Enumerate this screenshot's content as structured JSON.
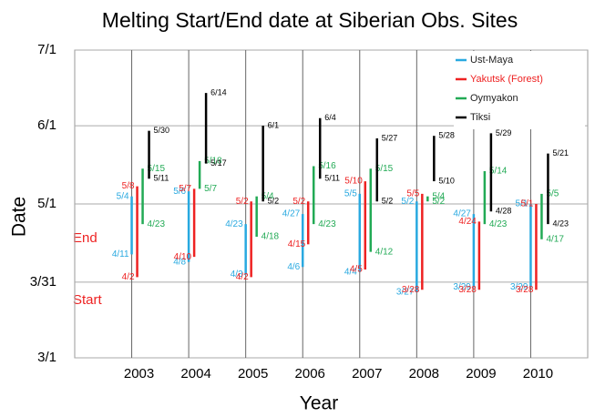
{
  "chart_data": {
    "type": "range_bar",
    "title": "Melting Start/End date at Siberian Obs. Sites",
    "x_label": "Year",
    "y_label": "Date",
    "annotations": [
      "End",
      "Start"
    ],
    "categories": [
      "2003",
      "2004",
      "2005",
      "2006",
      "2007",
      "2008",
      "2009",
      "2010"
    ],
    "ylim": [
      60,
      182
    ],
    "yticks": [
      {
        "value": 60,
        "label": "3/1"
      },
      {
        "value": 90,
        "label": "3/31"
      },
      {
        "value": 121,
        "label": "5/1"
      },
      {
        "value": 152,
        "label": "6/1"
      },
      {
        "value": 182,
        "label": "7/1"
      }
    ],
    "grid": true,
    "legend": "upper right",
    "series": [
      {
        "name": "Ust-Maya",
        "color": "#29a9e0",
        "start": [
          101,
          98,
          93,
          96,
          94,
          86,
          88,
          88
        ],
        "start_labels": [
          "4/11",
          "4/8",
          "4/3",
          "4/6",
          "4/4",
          "3/27",
          "3/29",
          "3/29"
        ],
        "end": [
          124,
          126,
          113,
          117,
          125,
          122,
          117,
          121
        ],
        "end_labels": [
          "5/4",
          "5/6",
          "4/23",
          "4/27",
          "5/5",
          "5/2",
          "4/27",
          "5/1"
        ]
      },
      {
        "name": "Yakutsk (Forest)",
        "color": "#ee2222",
        "start": [
          92,
          100,
          92,
          105,
          95,
          87,
          87,
          87
        ],
        "start_labels": [
          "4/2",
          "4/10",
          "4/2",
          "4/15",
          "4/5",
          "3/28",
          "3/28",
          "3/28"
        ],
        "end": [
          128,
          127,
          122,
          122,
          130,
          125,
          114,
          121
        ],
        "end_labels": [
          "5/8",
          "5/7",
          "5/2",
          "5/2",
          "5/10",
          "5/5",
          "4/24",
          "5/1"
        ]
      },
      {
        "name": "Oymyakon",
        "color": "#22aa55",
        "start": [
          113,
          127,
          108,
          113,
          102,
          122,
          113,
          107
        ],
        "start_labels": [
          "4/23",
          "5/7",
          "4/18",
          "4/23",
          "4/12",
          "5/2",
          "4/23",
          "4/17"
        ],
        "end": [
          135,
          138,
          124,
          136,
          135,
          124,
          134,
          125
        ],
        "end_labels": [
          "5/15",
          "5/18",
          "5/4",
          "5/16",
          "5/15",
          "5/4",
          "5/14",
          "5/5"
        ]
      },
      {
        "name": "Tiksi",
        "color": "#000000",
        "start": [
          131,
          137,
          122,
          131,
          122,
          130,
          118,
          113
        ],
        "start_labels": [
          "5/11",
          "5/17",
          "5/2",
          "5/11",
          "5/2",
          "5/10",
          "4/28",
          "4/23"
        ],
        "end": [
          150,
          165,
          152,
          155,
          147,
          148,
          149,
          141
        ],
        "end_labels": [
          "5/30",
          "6/14",
          "6/1",
          "6/4",
          "5/27",
          "5/28",
          "5/29",
          "5/21"
        ]
      }
    ]
  }
}
